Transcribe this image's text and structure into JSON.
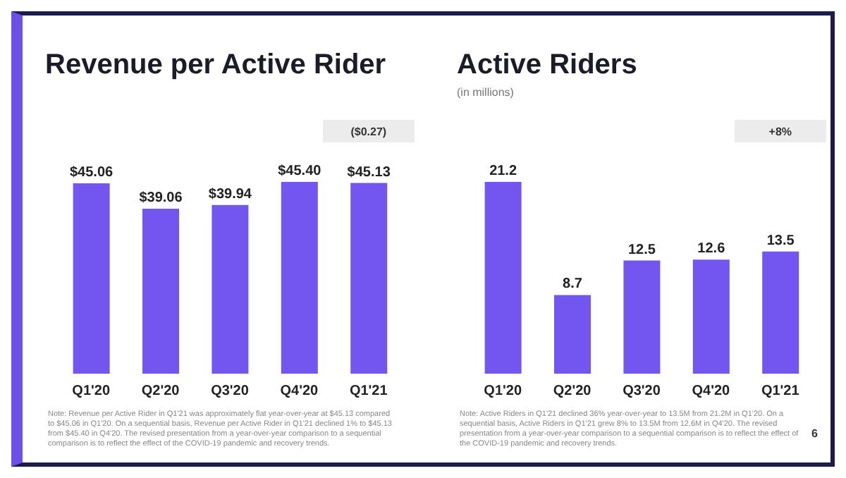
{
  "chart_data": [
    {
      "type": "bar",
      "title": "Revenue per Active Rider",
      "categories": [
        "Q1'20",
        "Q2'20",
        "Q3'20",
        "Q4'20",
        "Q1'21"
      ],
      "values": [
        45.06,
        39.06,
        39.94,
        45.4,
        45.13
      ],
      "value_labels": [
        "$45.06",
        "$39.06",
        "$39.94",
        "$45.40",
        "$45.13"
      ],
      "color": "#7356f0",
      "grid": false,
      "legend": false,
      "annotations": [
        "($0.27)",
        "Note: Revenue per Active Rider in Q1'21 was approximately flat year-over-year at $45.13 compared to $45.06 in Q1'20. On a sequential basis, Revenue per Active Rider in Q1'21 declined 1% to $45.13 from $45.40 in Q4'20. The revised presentation from a year-over-year comparison to a sequential comparison is to reflect the effect of the COVID-19 pandemic and recovery trends."
      ]
    },
    {
      "type": "bar",
      "title": "Active Riders",
      "subtitle": "(in millions)",
      "categories": [
        "Q1'20",
        "Q2'20",
        "Q3'20",
        "Q4'20",
        "Q1'21"
      ],
      "values": [
        21.2,
        8.7,
        12.5,
        12.6,
        13.5
      ],
      "data_labels": true,
      "color": "#7356f0",
      "grid": false,
      "legend": false,
      "annotations": [
        "+8%",
        "Note: Active Riders in Q1'21 declined 36% year-over-year to 13.5M from 21.2M in Q1'20. On a sequential basis, Active Riders in Q1'21 grew 8% to 13.5M from 12.6M in Q4'20. The revised presentation from a year-over-year comparison to a sequential comparison is to reflect the effect of the COVID-19 pandemic and recovery trends.",
        "6"
      ]
    }
  ]
}
